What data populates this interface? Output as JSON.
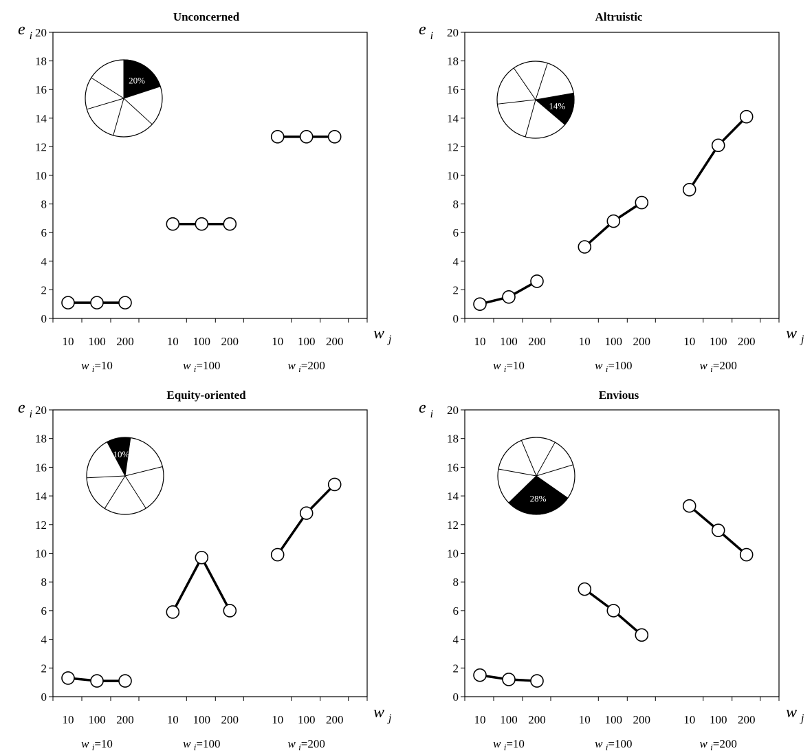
{
  "chart_data": [
    {
      "type": "line",
      "title": "Unconcerned",
      "ylabel": "e i",
      "xlabel": "w j",
      "ylim": [
        0,
        20
      ],
      "yticks": [
        0,
        2,
        4,
        6,
        8,
        10,
        12,
        14,
        16,
        18,
        20
      ],
      "x": [
        "10",
        "100",
        "200"
      ],
      "series": [
        {
          "name": "w i=10",
          "values": [
            1.1,
            1.1,
            1.1
          ]
        },
        {
          "name": "w i=100",
          "values": [
            6.6,
            6.6,
            6.6
          ]
        },
        {
          "name": "w i=200",
          "values": [
            12.7,
            12.7,
            12.7
          ]
        }
      ],
      "inset_pie": {
        "label": "20%",
        "highlight_share": 0.2,
        "highlight_color": "#000000"
      }
    },
    {
      "type": "line",
      "title": "Altruistic",
      "ylabel": "e i",
      "xlabel": "w j",
      "ylim": [
        0,
        20
      ],
      "yticks": [
        0,
        2,
        4,
        6,
        8,
        10,
        12,
        14,
        16,
        18,
        20
      ],
      "x": [
        "10",
        "100",
        "200"
      ],
      "series": [
        {
          "name": "w i=10",
          "values": [
            1.0,
            1.5,
            2.6
          ]
        },
        {
          "name": "w i=100",
          "values": [
            5.0,
            6.8,
            8.1
          ]
        },
        {
          "name": "w i=200",
          "values": [
            9.0,
            12.1,
            14.1
          ]
        }
      ],
      "inset_pie": {
        "label": "14%",
        "highlight_share": 0.14,
        "highlight_color": "#000000"
      }
    },
    {
      "type": "line",
      "title": "Equity-oriented",
      "ylabel": "e i",
      "xlabel": "w j",
      "ylim": [
        0,
        20
      ],
      "yticks": [
        0,
        2,
        4,
        6,
        8,
        10,
        12,
        14,
        16,
        18,
        20
      ],
      "x": [
        "10",
        "100",
        "200"
      ],
      "series": [
        {
          "name": "w i=10",
          "values": [
            1.3,
            1.1,
            1.1
          ]
        },
        {
          "name": "w i=100",
          "values": [
            5.9,
            9.7,
            6.0
          ]
        },
        {
          "name": "w i=200",
          "values": [
            9.9,
            12.8,
            14.8
          ]
        }
      ],
      "inset_pie": {
        "label": "10%",
        "highlight_share": 0.1,
        "highlight_color": "#000000"
      }
    },
    {
      "type": "line",
      "title": "Envious",
      "ylabel": "e i",
      "xlabel": "w j",
      "ylim": [
        0,
        20
      ],
      "yticks": [
        0,
        2,
        4,
        6,
        8,
        10,
        12,
        14,
        16,
        18,
        20
      ],
      "x": [
        "10",
        "100",
        "200"
      ],
      "series": [
        {
          "name": "w i=10",
          "values": [
            1.5,
            1.2,
            1.1
          ]
        },
        {
          "name": "w i=100",
          "values": [
            7.5,
            6.0,
            4.3
          ]
        },
        {
          "name": "w i=200",
          "values": [
            13.3,
            11.6,
            9.9
          ]
        }
      ],
      "inset_pie": {
        "label": "28%",
        "highlight_share": 0.28,
        "highlight_color": "#000000"
      }
    }
  ]
}
